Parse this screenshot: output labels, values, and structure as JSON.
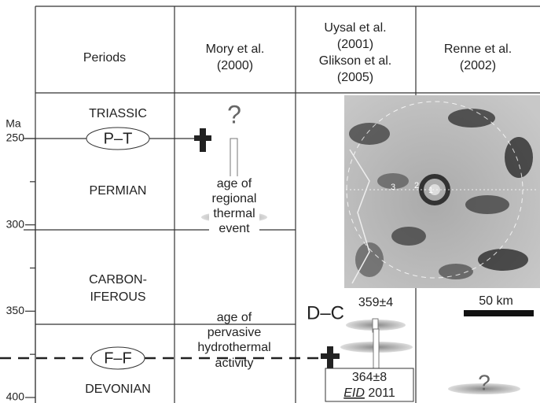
{
  "axis": {
    "label": "Ma",
    "ticks": [
      250,
      300,
      350,
      400
    ]
  },
  "header": {
    "columns": [
      [
        "Periods"
      ],
      [
        "Mory et al.",
        "(2000)"
      ],
      [
        "Uysal et al.",
        "(2001)",
        "Glikson et al.",
        "(2005)"
      ],
      [
        "Renne et al.",
        "(2002)"
      ]
    ]
  },
  "periods": [
    "TRIASSIC",
    "PERMIAN",
    [
      "CARBON-",
      "IFEROUS"
    ],
    "DEVONIAN"
  ],
  "boundaries": [
    "P–T",
    "F–F"
  ],
  "mory": {
    "query": "?",
    "regional": [
      "age of",
      "regional",
      "thermal",
      "event"
    ],
    "pervasive": [
      "age of",
      "pervasive",
      "hydrothermal",
      "activity"
    ]
  },
  "uysal": {
    "boundary": "D–C",
    "age1": "359±4",
    "age2": "364±8",
    "source": [
      "EID",
      "2011"
    ]
  },
  "image": {
    "labels": [
      "3",
      "2",
      "1"
    ],
    "scale": "50 km"
  },
  "renne": {
    "query": "?"
  }
}
